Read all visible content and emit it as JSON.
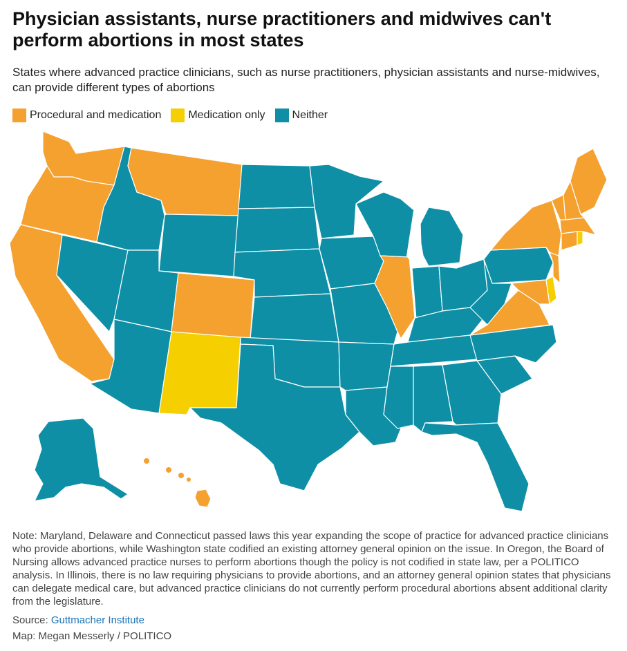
{
  "title": "Physician assistants, nurse practitioners and midwives can't perform abortions in most states",
  "subtitle": "States where advanced practice clinicians, such as nurse practitioners, physician assistants and nurse-midwives, can provide different types of abortions",
  "colors": {
    "procedural": "#f4a12f",
    "medication": "#f5cf00",
    "neither": "#0e8fa6"
  },
  "legend": [
    {
      "key": "procedural",
      "label": "Procedural and medication"
    },
    {
      "key": "medication",
      "label": "Medication only"
    },
    {
      "key": "neither",
      "label": "Neither"
    }
  ],
  "states": {
    "WA": "procedural",
    "OR": "procedural",
    "CA": "procedural",
    "MT": "procedural",
    "CO": "procedural",
    "IL": "procedural",
    "VA": "procedural",
    "MD": "procedural",
    "NJ": "procedural",
    "NY": "procedural",
    "VT": "procedural",
    "NH": "procedural",
    "ME": "procedural",
    "MA": "procedural",
    "CT": "procedural",
    "HI": "procedural",
    "NM": "medication",
    "DE": "medication",
    "RI": "medication",
    "ID": "neither",
    "NV": "neither",
    "UT": "neither",
    "AZ": "neither",
    "WY": "neither",
    "ND": "neither",
    "SD": "neither",
    "NE": "neither",
    "KS": "neither",
    "OK": "neither",
    "TX": "neither",
    "MN": "neither",
    "IA": "neither",
    "MO": "neither",
    "AR": "neither",
    "LA": "neither",
    "WI": "neither",
    "MI": "neither",
    "IN": "neither",
    "OH": "neither",
    "KY": "neither",
    "TN": "neither",
    "MS": "neither",
    "AL": "neither",
    "GA": "neither",
    "FL": "neither",
    "SC": "neither",
    "NC": "neither",
    "WV": "neither",
    "PA": "neither",
    "AK": "neither"
  },
  "note": "Note: Maryland, Delaware and Connecticut passed laws this year expanding the scope of practice for advanced practice clinicians who provide abortions, while Washington state codified an existing attorney general opinion on the issue. In Oregon, the Board of Nursing allows advanced practice nurses to perform abortions though the policy is not codified in state law, per a POLITICO analysis. In Illinois, there is no law requiring physicians to provide abortions, and an attorney general opinion states that physicians can delegate medical care, but advanced practice clinicians do not currently perform procedural abortions absent additional clarity from the legislature.",
  "source_label": "Source: ",
  "source_link": "Guttmacher Institute",
  "credit": "Map: Megan Messerly / POLITICO"
}
